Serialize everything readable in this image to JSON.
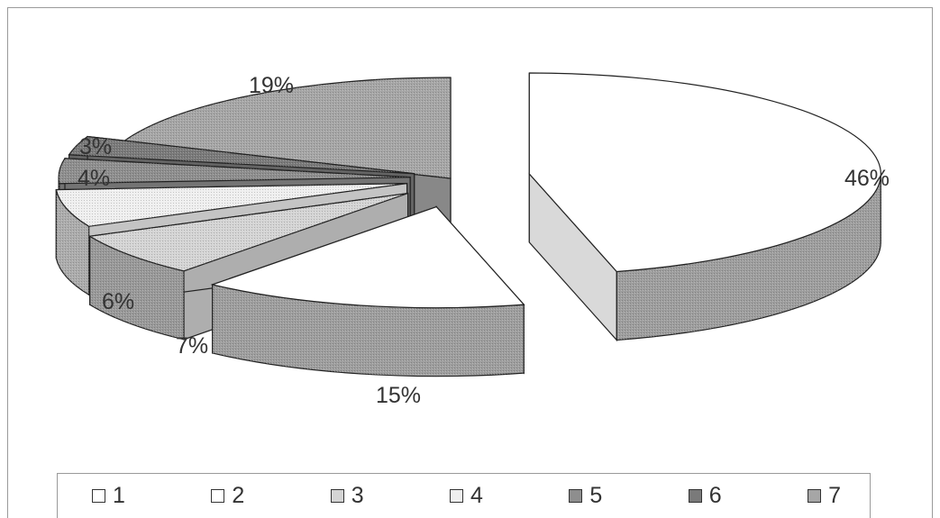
{
  "chart_data": {
    "type": "pie",
    "title": "",
    "categories": [
      "1",
      "2",
      "3",
      "4",
      "5",
      "6",
      "7"
    ],
    "values": [
      46,
      15,
      7,
      6,
      4,
      3,
      19
    ],
    "value_labels": [
      "46%",
      "15%",
      "7%",
      "6%",
      "4%",
      "3%",
      "19%"
    ],
    "colors": [
      "#ffffff",
      "#ffffff",
      "#d4d4d4",
      "#efefef",
      "#8e8e8e",
      "#7a7a7a",
      "#a6a6a6"
    ],
    "style": "3d exploded",
    "legend_position": "bottom"
  }
}
